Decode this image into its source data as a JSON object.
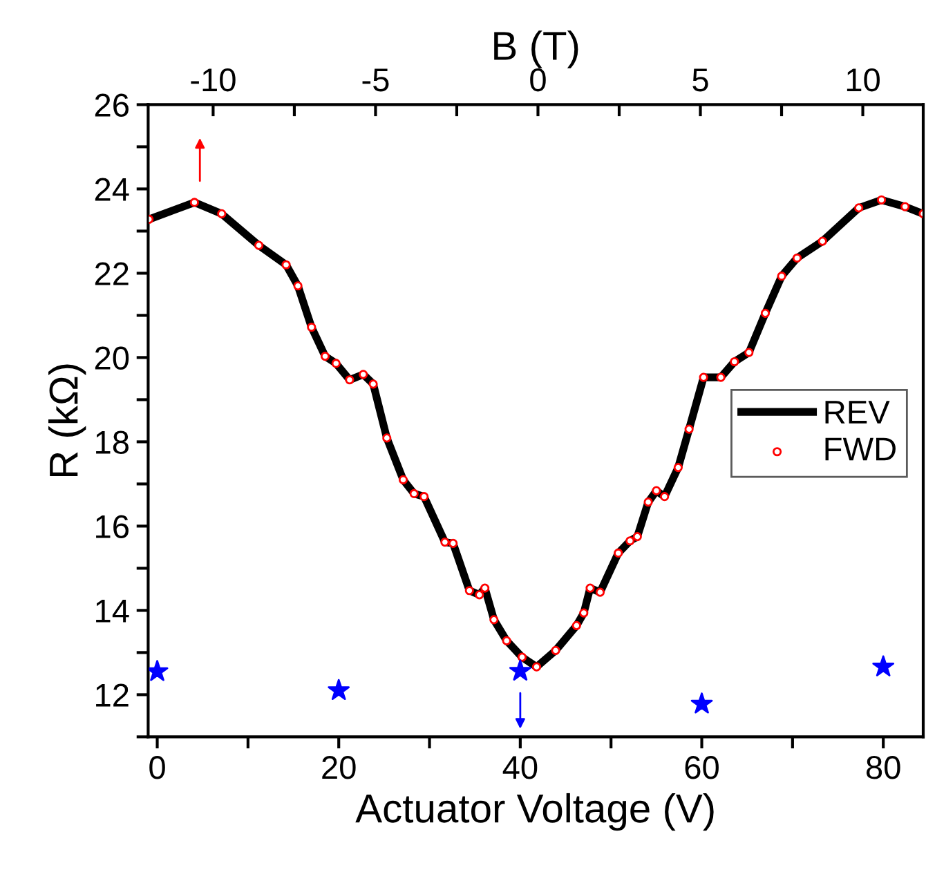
{
  "chart_data": {
    "type": "line",
    "xlabel": "Actuator Voltage (V)",
    "ylabel": "R (kΩ)",
    "x2label": "B (T)",
    "xlim": [
      -1,
      84.4
    ],
    "xticks": [
      0,
      {
        "value": 10,
        "label": null
      },
      20,
      {
        "value": 30,
        "label": null
      },
      40,
      {
        "value": 50,
        "label": null
      },
      60,
      {
        "value": 70,
        "label": null
      },
      80
    ],
    "ylim": [
      11,
      26
    ],
    "yticks": [
      {
        "value": 11,
        "label": null
      },
      12,
      {
        "value": 13,
        "label": null
      },
      14,
      {
        "value": 15,
        "label": null
      },
      16,
      {
        "value": 17,
        "label": null
      },
      18,
      {
        "value": 19,
        "label": null
      },
      20,
      {
        "value": 21,
        "label": null
      },
      22,
      {
        "value": 23,
        "label": null
      },
      24,
      {
        "value": 25,
        "label": null
      },
      26
    ],
    "x2lim": [
      -12,
      11.86
    ],
    "x2ticks": [
      -10,
      {
        "value": -7.5,
        "label": null
      },
      -5,
      {
        "value": -2.5,
        "label": null
      },
      0,
      {
        "value": 2.5,
        "label": null
      },
      5,
      {
        "value": 7.5,
        "label": null
      },
      10
    ],
    "grid": false,
    "legend": "right",
    "x": [
      -0.9,
      4.1,
      7.1,
      11.2,
      14.2,
      15.5,
      17.0,
      18.5,
      19.7,
      21.2,
      22.7,
      23.8,
      25.3,
      27.1,
      28.3,
      29.4,
      31.7,
      32.6,
      34.4,
      35.5,
      36.1,
      37.1,
      38.5,
      40.2,
      41.8,
      43.9,
      46.2,
      47.0,
      47.7,
      48.8,
      50.8,
      52.1,
      52.9,
      54.1,
      55.0,
      55.9,
      57.4,
      58.6,
      60.2,
      62.1,
      63.6,
      65.2,
      67.0,
      68.8,
      70.5,
      73.3,
      77.3,
      79.8,
      82.4,
      84.4
    ],
    "series": [
      {
        "name": "REV",
        "color": "#000000",
        "marker": "none",
        "values": [
          23.28,
          23.68,
          23.41,
          22.66,
          22.2,
          21.7,
          20.72,
          20.03,
          19.86,
          19.47,
          19.6,
          19.37,
          18.09,
          17.1,
          16.77,
          16.7,
          15.62,
          15.59,
          14.47,
          14.37,
          14.53,
          13.78,
          13.28,
          12.89,
          12.66,
          13.05,
          13.64,
          13.94,
          14.53,
          14.43,
          15.36,
          15.65,
          15.75,
          16.57,
          16.84,
          16.7,
          17.39,
          18.3,
          19.53,
          19.53,
          19.9,
          20.12,
          21.05,
          21.93,
          22.36,
          22.76,
          23.55,
          23.74,
          23.58,
          23.41
        ]
      },
      {
        "name": "FWD",
        "type": "scatter",
        "color": "#ff0000",
        "marker": "circle",
        "values": [
          23.28,
          23.68,
          23.41,
          22.66,
          22.2,
          21.7,
          20.72,
          20.03,
          19.86,
          19.47,
          19.6,
          19.37,
          18.09,
          17.1,
          16.77,
          16.7,
          15.62,
          15.59,
          14.47,
          14.37,
          14.53,
          13.78,
          13.28,
          12.89,
          12.66,
          13.05,
          13.64,
          13.94,
          14.53,
          14.43,
          15.36,
          15.65,
          15.75,
          16.57,
          16.84,
          16.7,
          17.39,
          18.3,
          19.53,
          19.53,
          19.9,
          20.12,
          21.05,
          21.93,
          22.36,
          22.76,
          23.55,
          23.74,
          23.58,
          23.41
        ]
      },
      {
        "type": "scatter",
        "color": "#0000ff",
        "marker": "star",
        "x": [
          0,
          20,
          40,
          60,
          80
        ],
        "values": [
          12.55,
          12.1,
          12.56,
          11.78,
          12.66
        ]
      }
    ]
  }
}
